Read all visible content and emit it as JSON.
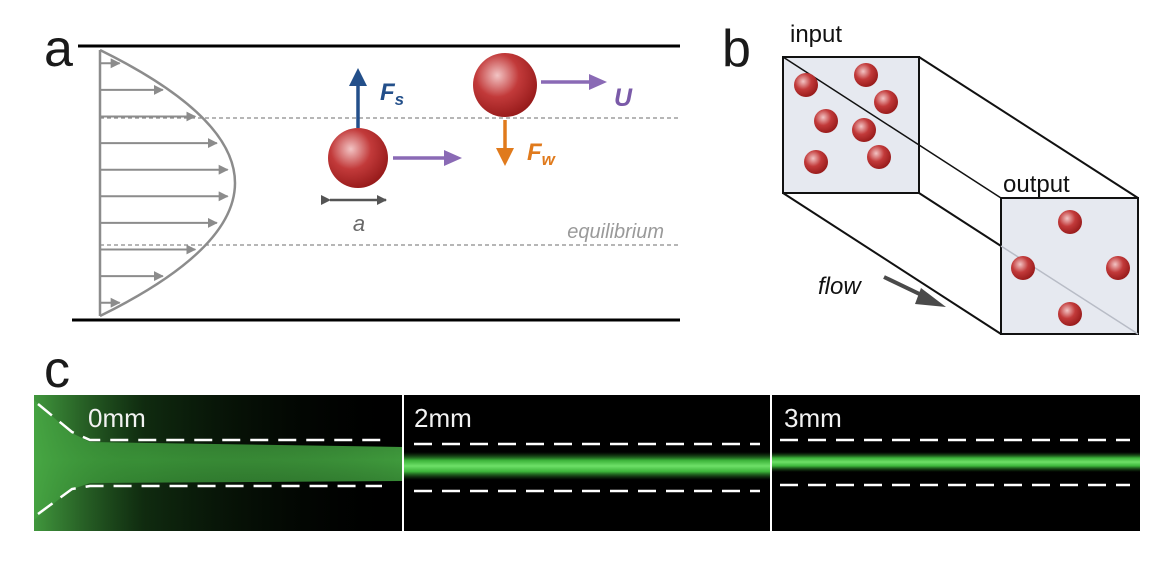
{
  "panels": {
    "a": {
      "letter": "a",
      "force_shear": "F",
      "force_shear_sub": "s",
      "force_wall": "F",
      "force_wall_sub": "w",
      "velocity": "U",
      "diameter": "a",
      "equilibrium": "equilibrium"
    },
    "b": {
      "letter": "b",
      "input": "input",
      "output": "output",
      "flow": "flow"
    },
    "c": {
      "letter": "c",
      "frames": [
        "0mm",
        "2mm",
        "3mm"
      ]
    }
  },
  "colors": {
    "particle": "#b3262b",
    "shear_force": "#234f8a",
    "wall_force": "#e07a1c",
    "velocity": "#8a6ab5",
    "profile": "#8c8c8c",
    "fluorescence": "#4fd04a"
  }
}
